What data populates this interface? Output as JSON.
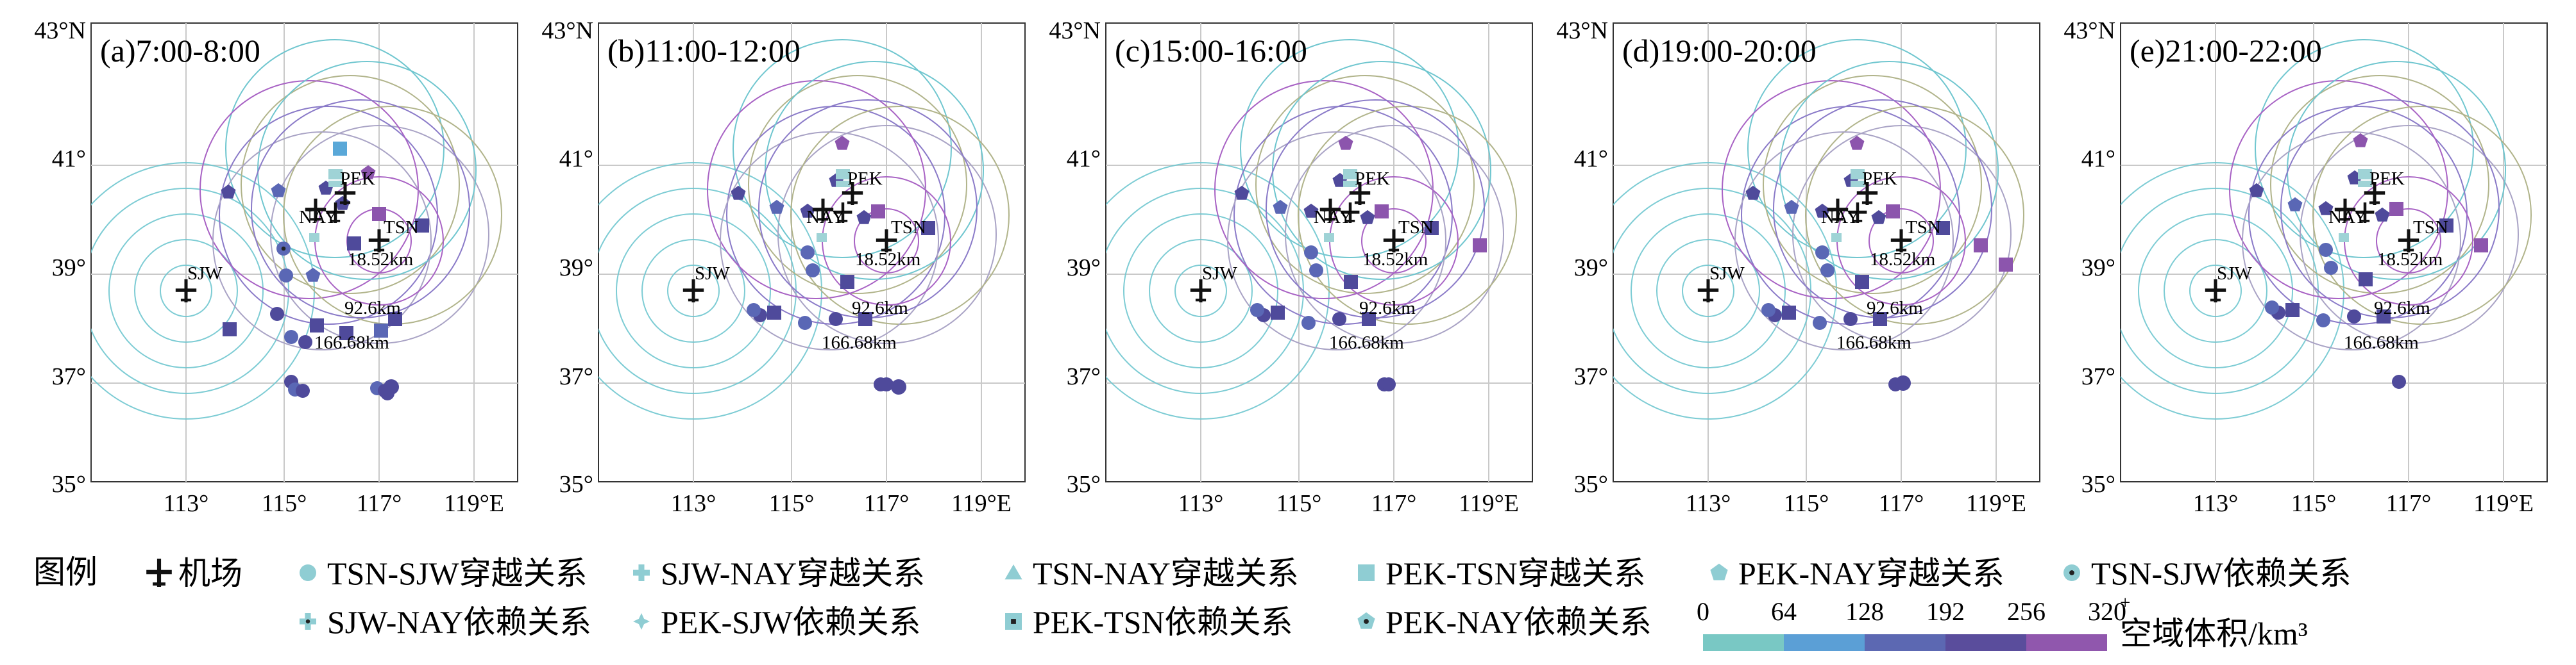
{
  "panels": [
    {
      "label": "(a)7:00-8:00"
    },
    {
      "label": "(b)11:00-12:00"
    },
    {
      "label": "(c)15:00-16:00"
    },
    {
      "label": "(d)19:00-20:00"
    },
    {
      "label": "(e)21:00-22:00"
    }
  ],
  "axes": {
    "lat_ticks": [
      "43°N",
      "41°",
      "39°",
      "37°",
      "35°"
    ],
    "lon_ticks": [
      "113°",
      "115°",
      "117°",
      "119°E"
    ]
  },
  "airports": {
    "SJW": "SJW",
    "NAY": "NAY",
    "PEK": "PEK",
    "TSN": "TSN"
  },
  "distance_labels": [
    "18.52km",
    "92.6km",
    "166.68km"
  ],
  "legend": {
    "title": "图例",
    "items": [
      {
        "label": "机场",
        "icon": "airport-icon"
      },
      {
        "label": "TSN-SJW穿越关系",
        "icon": "circle-icon"
      },
      {
        "label": "SJW-NAY穿越关系",
        "icon": "plus-icon"
      },
      {
        "label": "TSN-NAY穿越关系",
        "icon": "triangle-icon"
      },
      {
        "label": "PEK-TSN穿越关系",
        "icon": "square-icon"
      },
      {
        "label": "PEK-NAY穿越关系",
        "icon": "pentagon-icon"
      },
      {
        "label": "TSN-SJW依赖关系",
        "icon": "dotted-circle-icon"
      },
      {
        "label": "SJW-NAY依赖关系",
        "icon": "dotted-plus-icon"
      },
      {
        "label": "PEK-SJW依赖关系",
        "icon": "star-icon"
      },
      {
        "label": "PEK-TSN依赖关系",
        "icon": "dotted-square-icon"
      },
      {
        "label": "PEK-NAY依赖关系",
        "icon": "dotted-pentagon-icon"
      }
    ]
  },
  "colorbar": {
    "ticks": [
      "0",
      "64",
      "128",
      "192",
      "256",
      "320"
    ],
    "superscript": "+",
    "label": "空域体积/km³",
    "colors": [
      "#79c8c4",
      "#5b9fd6",
      "#5c68b2",
      "#5a4d9c",
      "#9057ad"
    ]
  },
  "colors": {
    "ring_colors": [
      "#6fc6cf",
      "#b1b48b",
      "#a9a3c5",
      "#8a7ac8",
      "#a862c4"
    ],
    "marker_colors": [
      "#7bc6c8",
      "#5aa8d8",
      "#5a67b5",
      "#4f4a9b",
      "#8c55ad"
    ]
  }
}
